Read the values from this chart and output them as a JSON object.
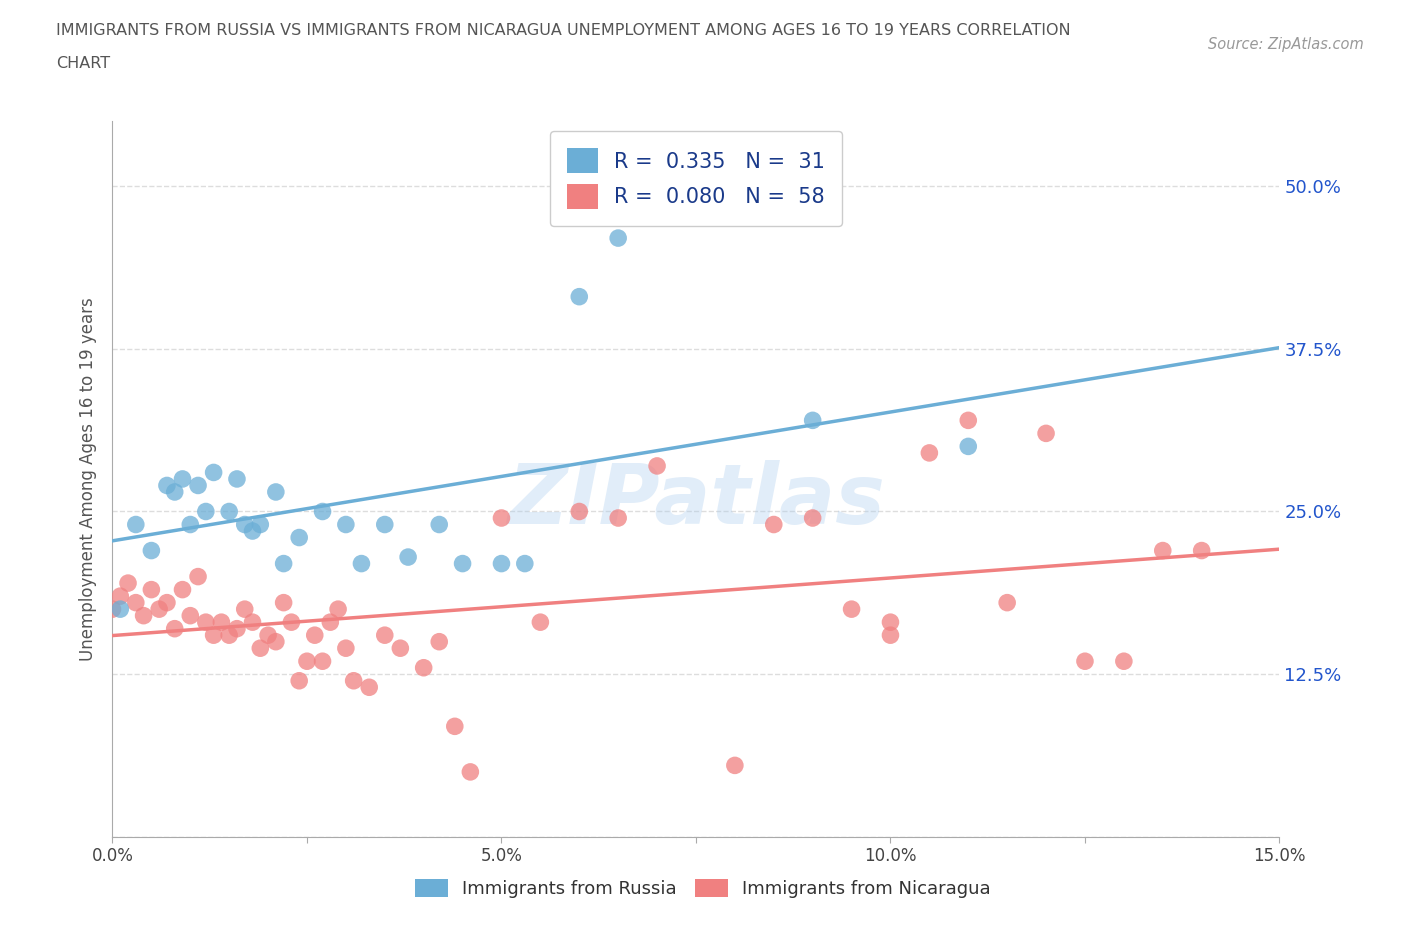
{
  "title_line1": "IMMIGRANTS FROM RUSSIA VS IMMIGRANTS FROM NICARAGUA UNEMPLOYMENT AMONG AGES 16 TO 19 YEARS CORRELATION",
  "title_line2": "CHART",
  "source_text": "Source: ZipAtlas.com",
  "ylabel": "Unemployment Among Ages 16 to 19 years",
  "xlim": [
    0.0,
    0.15
  ],
  "ylim": [
    0.0,
    0.55
  ],
  "x_ticks": [
    0.0,
    0.025,
    0.05,
    0.075,
    0.1,
    0.125,
    0.15
  ],
  "x_tick_labels": [
    "0.0%",
    "",
    "5.0%",
    "",
    "10.0%",
    "",
    "15.0%"
  ],
  "y_ticks": [
    0.0,
    0.125,
    0.25,
    0.375,
    0.5
  ],
  "y_tick_labels_right": [
    "",
    "12.5%",
    "25.0%",
    "37.5%",
    "50.0%"
  ],
  "russia_color": "#6baed6",
  "nicaragua_color": "#f08080",
  "russia_R": 0.335,
  "russia_N": 31,
  "nicaragua_R": 0.08,
  "nicaragua_N": 58,
  "russia_scatter_x": [
    0.001,
    0.003,
    0.005,
    0.007,
    0.008,
    0.009,
    0.01,
    0.011,
    0.012,
    0.013,
    0.015,
    0.016,
    0.017,
    0.018,
    0.019,
    0.021,
    0.022,
    0.024,
    0.027,
    0.03,
    0.032,
    0.035,
    0.038,
    0.042,
    0.045,
    0.05,
    0.053,
    0.06,
    0.065,
    0.09,
    0.11
  ],
  "russia_scatter_y": [
    0.175,
    0.24,
    0.22,
    0.27,
    0.265,
    0.275,
    0.24,
    0.27,
    0.25,
    0.28,
    0.25,
    0.275,
    0.24,
    0.235,
    0.24,
    0.265,
    0.21,
    0.23,
    0.25,
    0.24,
    0.21,
    0.24,
    0.215,
    0.24,
    0.21,
    0.21,
    0.21,
    0.415,
    0.46,
    0.32,
    0.3
  ],
  "nicaragua_scatter_x": [
    0.0,
    0.001,
    0.002,
    0.003,
    0.004,
    0.005,
    0.006,
    0.007,
    0.008,
    0.009,
    0.01,
    0.011,
    0.012,
    0.013,
    0.014,
    0.015,
    0.016,
    0.017,
    0.018,
    0.019,
    0.02,
    0.021,
    0.022,
    0.023,
    0.024,
    0.025,
    0.026,
    0.027,
    0.028,
    0.029,
    0.03,
    0.031,
    0.033,
    0.035,
    0.037,
    0.04,
    0.042,
    0.044,
    0.046,
    0.05,
    0.055,
    0.06,
    0.065,
    0.07,
    0.08,
    0.085,
    0.09,
    0.095,
    0.1,
    0.1,
    0.105,
    0.11,
    0.115,
    0.12,
    0.125,
    0.13,
    0.135,
    0.14
  ],
  "nicaragua_scatter_y": [
    0.175,
    0.185,
    0.195,
    0.18,
    0.17,
    0.19,
    0.175,
    0.18,
    0.16,
    0.19,
    0.17,
    0.2,
    0.165,
    0.155,
    0.165,
    0.155,
    0.16,
    0.175,
    0.165,
    0.145,
    0.155,
    0.15,
    0.18,
    0.165,
    0.12,
    0.135,
    0.155,
    0.135,
    0.165,
    0.175,
    0.145,
    0.12,
    0.115,
    0.155,
    0.145,
    0.13,
    0.15,
    0.085,
    0.05,
    0.245,
    0.165,
    0.25,
    0.245,
    0.285,
    0.055,
    0.24,
    0.245,
    0.175,
    0.165,
    0.155,
    0.295,
    0.32,
    0.18,
    0.31,
    0.135,
    0.135,
    0.22,
    0.22
  ],
  "watermark_text": "ZIPatlas",
  "background_color": "#ffffff",
  "grid_color": "#dddddd",
  "grid_style": "--",
  "axis_color": "#aaaaaa",
  "text_color": "#2255cc",
  "title_color": "#555555",
  "legend_text_color": "#1a3a8a"
}
